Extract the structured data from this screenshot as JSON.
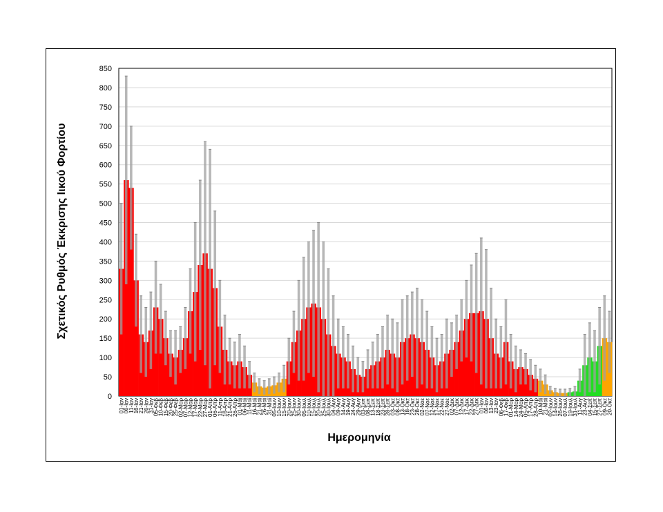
{
  "chart_data": {
    "type": "bar",
    "title": "",
    "xlabel": "Ημερομηνία",
    "ylabel": "Σχετικός Ρυθμός Έκκρισης Ιικού Φορτίου",
    "ylim": [
      0,
      850
    ],
    "yticks": [
      0,
      50,
      100,
      150,
      200,
      250,
      300,
      350,
      400,
      450,
      500,
      550,
      600,
      650,
      700,
      750,
      800,
      850
    ],
    "grid": true,
    "legend": "none",
    "level_colors": {
      "r": "#ff0000",
      "o": "#ffa500",
      "g": "#22dd22"
    },
    "error_bar_color": "#a0a0a0",
    "categories": [
      "01-Ιαν",
      "06-Ιαν",
      "11-Ιαν",
      "16-Ιαν",
      "21-Ιαν",
      "26-Ιαν",
      "31-Ιαν",
      "05-Φεβ",
      "10-Φεβ",
      "15-Φεβ",
      "20-Φεβ",
      "25-Φεβ",
      "02-Μαρ",
      "07-Μαρ",
      "12-Μαρ",
      "17-Μαρ",
      "22-Μαρ",
      "27-Μαρ",
      "01-Απρ",
      "06-Απρ",
      "11-Απρ",
      "16-Απρ",
      "21-Απρ",
      "26-Απρ",
      "01-Μαϊ",
      "06-Μαϊ",
      "11-Μαϊ",
      "16-Μαϊ",
      "21-Μαϊ",
      "26-Μαϊ",
      "31-Μαϊ",
      "05-Ιουν",
      "10-Ιουν",
      "15-Ιουν",
      "20-Ιουν",
      "25-Ιουν",
      "30-Ιουν",
      "05-Ιουλ",
      "10-Ιουλ",
      "15-Ιουλ",
      "20-Ιουλ",
      "25-Ιουλ",
      "30-Ιουλ",
      "04-Αυγ",
      "09-Αυγ",
      "14-Αυγ",
      "19-Αυγ",
      "24-Αυγ",
      "29-Αυγ",
      "03-Σεπ",
      "08-Σεπ",
      "13-Σεπ",
      "18-Σεπ",
      "23-Σεπ",
      "28-Σεπ",
      "03-Οκτ",
      "08-Οκτ",
      "13-Οκτ",
      "18-Οκτ",
      "23-Οκτ",
      "28-Οκτ",
      "02-Νοε",
      "07-Νοε",
      "12-Νοε",
      "17-Νοε",
      "22-Νοε",
      "27-Νοε",
      "02-Δεκ",
      "07-Δεκ",
      "12-Δεκ",
      "17-Δεκ",
      "22-Δεκ",
      "27-Δεκ",
      "01-Ιαν",
      "06-Ιαν",
      "13-Ιαν",
      "23-Ιαν",
      "06-Φεβ",
      "17-Φεβ",
      "01-Μαρ",
      "14-Μαρ",
      "24-Μαρ",
      "05-Απρ",
      "17-Απρ",
      "28-Απρ",
      "10-Μαϊ",
      "21-Μαϊ",
      "02-Ιουν",
      "14-Ιουν",
      "26-Ιουν",
      "07-Ιουλ",
      "19-Ιουλ",
      "31-Ιουλ",
      "11-Αυγ",
      "23-Αυγ",
      "04-Σεπ",
      "15-Σεπ",
      "27-Σεπ",
      "09-Οκτ",
      "20-Οκτ"
    ],
    "values": [
      330,
      560,
      540,
      300,
      160,
      140,
      170,
      230,
      200,
      150,
      110,
      100,
      120,
      150,
      220,
      270,
      340,
      370,
      330,
      280,
      180,
      120,
      90,
      80,
      90,
      75,
      55,
      35,
      25,
      22,
      25,
      28,
      35,
      45,
      90,
      140,
      170,
      200,
      230,
      240,
      230,
      200,
      160,
      130,
      110,
      100,
      90,
      70,
      55,
      50,
      70,
      80,
      90,
      100,
      120,
      110,
      100,
      140,
      150,
      160,
      150,
      140,
      120,
      100,
      80,
      90,
      110,
      120,
      140,
      170,
      200,
      215,
      215,
      220,
      200,
      150,
      110,
      100,
      140,
      90,
      70,
      75,
      70,
      55,
      45,
      40,
      30,
      15,
      10,
      8,
      8,
      10,
      12,
      40,
      80,
      100,
      90,
      130,
      150,
      140
    ],
    "error_upper": [
      500,
      830,
      700,
      420,
      260,
      230,
      270,
      350,
      290,
      220,
      170,
      170,
      180,
      230,
      330,
      450,
      560,
      660,
      640,
      480,
      300,
      210,
      150,
      140,
      160,
      130,
      90,
      60,
      45,
      40,
      45,
      50,
      60,
      80,
      150,
      220,
      300,
      360,
      400,
      430,
      450,
      400,
      330,
      260,
      200,
      180,
      160,
      130,
      100,
      90,
      120,
      140,
      160,
      180,
      210,
      200,
      190,
      250,
      260,
      270,
      280,
      250,
      220,
      180,
      150,
      160,
      200,
      190,
      210,
      250,
      300,
      340,
      370,
      410,
      380,
      280,
      200,
      180,
      250,
      160,
      130,
      120,
      110,
      95,
      80,
      70,
      55,
      25,
      20,
      18,
      18,
      20,
      25,
      70,
      160,
      190,
      170,
      230,
      260,
      220
    ],
    "levels": "rrrrrrrrrrrrrrrrrrrrrrrrrrrooooooorrrrrrrrrrrrrrrrrrrrrrrrrrrrrrrrrrrrrrrrrrrrrrrrrrroooooogggggggooooooo"
  }
}
